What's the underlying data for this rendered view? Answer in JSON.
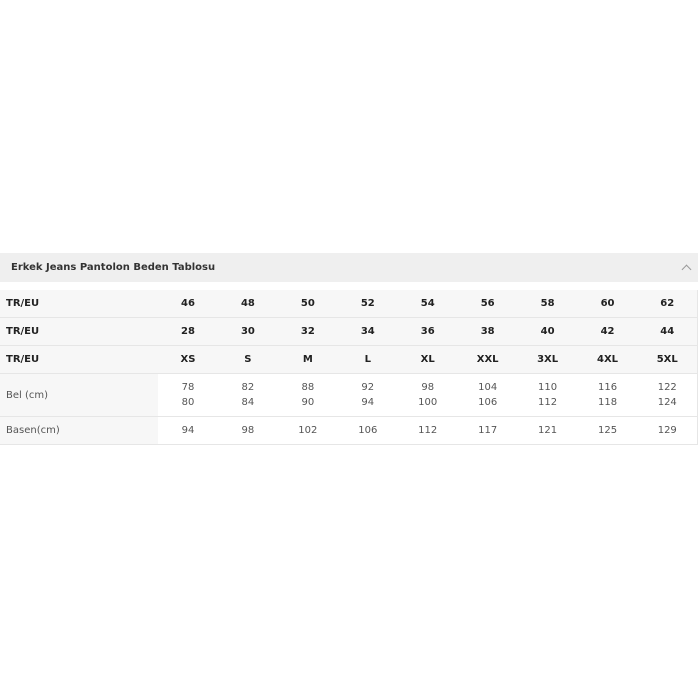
{
  "title": "Erkek Jeans Pantolon Beden Tablosu",
  "toggle_icon": "chevron-up-icon",
  "rows": [
    {
      "label": "TR/EU",
      "values": [
        "46",
        "48",
        "50",
        "52",
        "54",
        "56",
        "58",
        "60",
        "62"
      ]
    },
    {
      "label": "TR/EU",
      "values": [
        "28",
        "30",
        "32",
        "34",
        "36",
        "38",
        "40",
        "42",
        "44"
      ]
    },
    {
      "label": "TR/EU",
      "values": [
        "XS",
        "S",
        "M",
        "L",
        "XL",
        "XXL",
        "3XL",
        "4XL",
        "5XL"
      ]
    }
  ],
  "bel": {
    "label": "Bel (cm)",
    "values": [
      [
        "78",
        "80"
      ],
      [
        "82",
        "84"
      ],
      [
        "88",
        "90"
      ],
      [
        "92",
        "94"
      ],
      [
        "98",
        "100"
      ],
      [
        "104",
        "106"
      ],
      [
        "110",
        "112"
      ],
      [
        "116",
        "118"
      ],
      [
        "122",
        "124"
      ]
    ]
  },
  "basen": {
    "label": "Basen(cm)",
    "values": [
      "94",
      "98",
      "102",
      "106",
      "112",
      "117",
      "121",
      "125",
      "129"
    ]
  }
}
